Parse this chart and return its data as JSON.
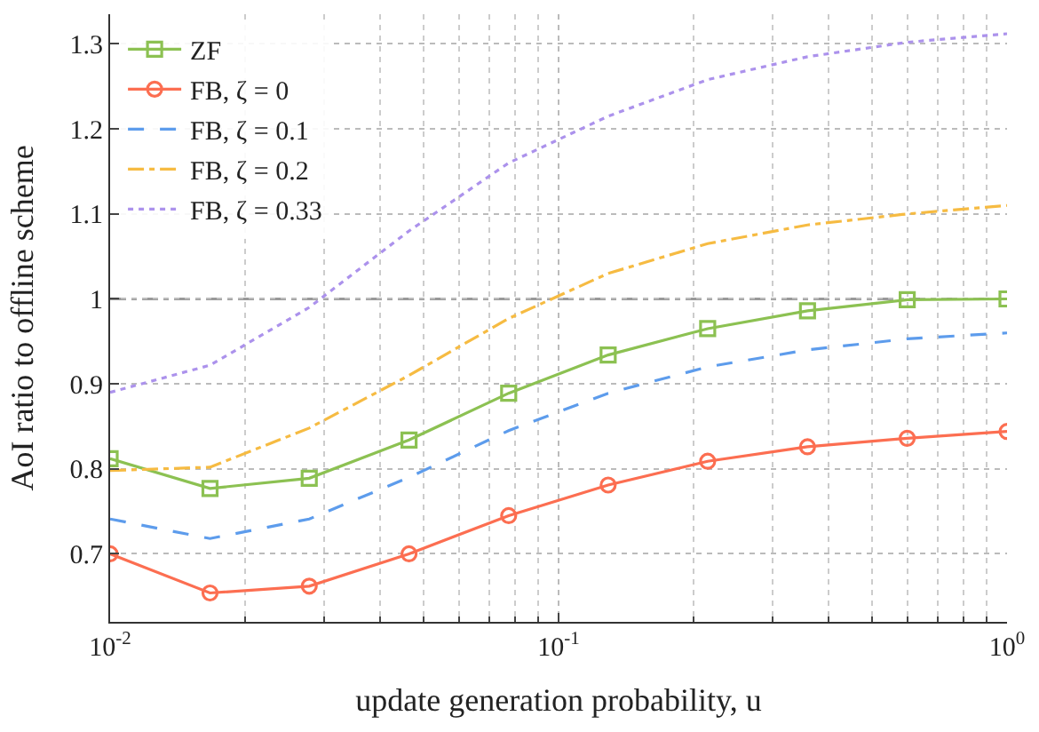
{
  "chart_data": {
    "type": "line",
    "xlabel": "update generation probability, u",
    "ylabel": "AoI ratio to offline scheme",
    "x": [
      0.01,
      0.0167,
      0.0278,
      0.0464,
      0.0774,
      0.129,
      0.215,
      0.359,
      0.599,
      1.0
    ],
    "series": [
      {
        "name": "ZF",
        "color": "#8cc152",
        "marker": "square",
        "line_style": "solid",
        "values": [
          0.812,
          0.777,
          0.789,
          0.834,
          0.889,
          0.934,
          0.965,
          0.986,
          0.999,
          1.0
        ]
      },
      {
        "name": "FB, ζ = 0",
        "color": "#fc6e51",
        "marker": "circle",
        "line_style": "solid",
        "values": [
          0.7,
          0.654,
          0.662,
          0.7,
          0.745,
          0.781,
          0.809,
          0.826,
          0.836,
          0.844
        ]
      },
      {
        "name": "FB, ζ = 0.1",
        "color": "#5d9cec",
        "marker": "none",
        "line_style": "dashed",
        "values": [
          0.741,
          0.718,
          0.741,
          0.79,
          0.845,
          0.889,
          0.92,
          0.94,
          0.953,
          0.96
        ]
      },
      {
        "name": "FB, ζ = 0.2",
        "color": "#f6bb42",
        "marker": "none",
        "line_style": "dashdot",
        "values": [
          0.798,
          0.802,
          0.848,
          0.91,
          0.977,
          1.03,
          1.065,
          1.087,
          1.1,
          1.11
        ]
      },
      {
        "name": "FB, ζ = 0.33",
        "color": "#ac92ec",
        "marker": "none",
        "line_style": "dotted",
        "values": [
          0.89,
          0.922,
          0.99,
          1.08,
          1.16,
          1.215,
          1.258,
          1.285,
          1.302,
          1.312
        ]
      }
    ],
    "log": "x",
    "xlim": [
      0.01,
      1.0
    ],
    "xticks": [
      {
        "value": 0.01,
        "label": "10$^{-2}$"
      },
      {
        "value": 0.1,
        "label": "10$^{-1}$"
      },
      {
        "value": 1.0,
        "label": "10$^{0}$"
      }
    ],
    "ylim": [
      0.62,
      1.335
    ],
    "yticks": [
      0.7,
      0.8,
      0.9,
      1,
      1.1,
      1.2,
      1.3
    ],
    "ref_lines": [
      {
        "axis": "y",
        "value": 1,
        "color": "#999999",
        "line_style": "dashdot"
      }
    ],
    "grid": true,
    "legend": "top left"
  }
}
